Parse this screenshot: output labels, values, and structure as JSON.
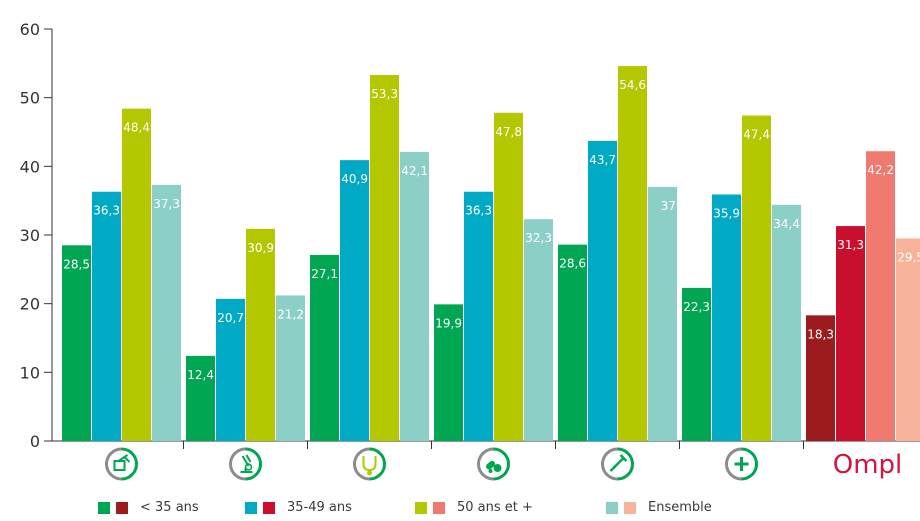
{
  "chart_data": {
    "type": "bar",
    "ylim": [
      0,
      60
    ],
    "yticks": [
      "0",
      "10",
      "20",
      "30",
      "40",
      "50",
      "60"
    ],
    "categories": [
      "icon-1",
      "icon-2",
      "icon-3",
      "icon-4",
      "icon-5",
      "icon-6",
      "Ompl"
    ],
    "category_icons": [
      "pharmacy-icon",
      "microscope-icon",
      "stethoscope-icon",
      "pills-icon",
      "syringe-icon",
      "medical-cross-icon",
      "ompl-logo"
    ],
    "series": [
      {
        "name": "< 35 ans",
        "color": "#00a651",
        "ompl_color": "#9b1b1f",
        "values": [
          28.5,
          12.4,
          27.1,
          19.9,
          28.6,
          22.3,
          18.3
        ],
        "labels": [
          "28,5",
          "12,4",
          "27,1",
          "19,9",
          "28,6",
          "22,3",
          "18,3"
        ]
      },
      {
        "name": "35-49 ans",
        "color": "#00a9c4",
        "ompl_color": "#c8102e",
        "values": [
          36.3,
          20.7,
          40.9,
          36.3,
          43.7,
          35.9,
          31.3
        ],
        "labels": [
          "36,3",
          "20,7",
          "40,9",
          "36,3",
          "43,7",
          "35,9",
          "31,3"
        ]
      },
      {
        "name": "50 ans et +",
        "color": "#b3c800",
        "ompl_color": "#f07a70",
        "values": [
          48.4,
          30.9,
          53.3,
          47.8,
          54.6,
          47.4,
          42.2
        ],
        "labels": [
          "48,4",
          "30,9",
          "53,3",
          "47,8",
          "54,6",
          "47,4",
          "42,2"
        ]
      },
      {
        "name": "Ensemble",
        "color": "#8ccfc6",
        "ompl_color": "#f7b49a",
        "values": [
          37.3,
          21.2,
          42.1,
          32.3,
          37,
          34.4,
          29.5
        ],
        "labels": [
          "37,3",
          "21,2",
          "42,1",
          "32,3",
          "37",
          "34,4",
          "29,5"
        ]
      }
    ],
    "legend_position": "bottom",
    "grid": false
  },
  "icon_colors": {
    "ring_grey": "#8c8c8c",
    "icon_green": "#00a651",
    "ompl_red": "#d6153f"
  },
  "ompl_logo_text": "Ompl"
}
